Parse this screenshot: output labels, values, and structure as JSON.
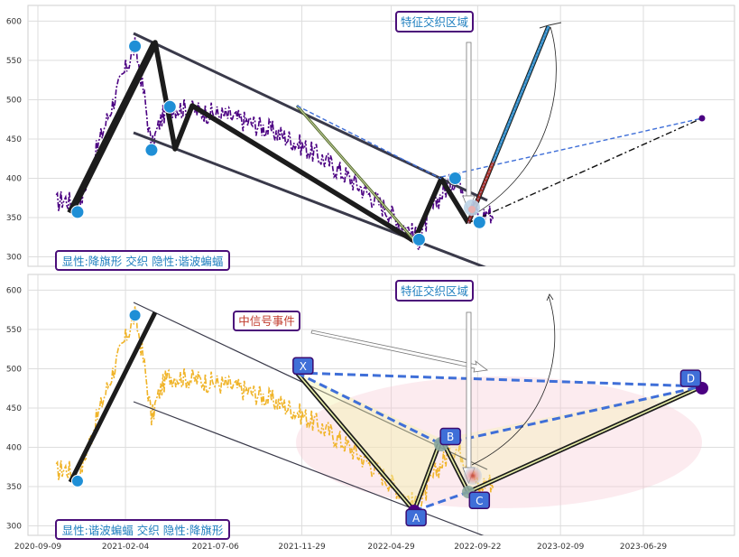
{
  "chart_data": [
    {
      "type": "line",
      "panel": "top",
      "ylim": [
        288,
        620
      ],
      "y_ticks": [
        300,
        350,
        400,
        450,
        500,
        550,
        600
      ],
      "y_tick_labels": [
        "300",
        "350",
        "400",
        "450",
        "500",
        "550",
        "600"
      ],
      "x_ticks": [
        "2020-09-09",
        "2021-02-04",
        "2021-07-06",
        "2021-11-29",
        "2022-04-29",
        "2022-09-22",
        "2023-02-09",
        "2023-06-29"
      ],
      "price_series_color": "#4b0082",
      "pivots": [
        {
          "date": "2020-11-15",
          "value": 357
        },
        {
          "date": "2021-02-20",
          "value": 568
        },
        {
          "date": "2021-03-20",
          "value": 436
        },
        {
          "date": "2021-04-20",
          "value": 491
        },
        {
          "date": "2022-06-15",
          "value": 322
        },
        {
          "date": "2022-08-15",
          "value": 400
        },
        {
          "date": "2022-09-25",
          "value": 344
        }
      ],
      "annotations": [
        {
          "text": "特征交织区域",
          "color": "#1f7fbf"
        },
        {
          "text": "显性:降旗形 交织 隐性:谐波蝙蝠",
          "color": "#1f7fbf"
        }
      ]
    },
    {
      "type": "line",
      "panel": "bottom",
      "ylim": [
        288,
        620
      ],
      "y_ticks": [
        300,
        350,
        400,
        450,
        500,
        550,
        600
      ],
      "y_tick_labels": [
        "300",
        "350",
        "400",
        "450",
        "500",
        "550",
        "600"
      ],
      "x_ticks": [
        "2020-09-09",
        "2021-02-04",
        "2021-07-06",
        "2021-11-29",
        "2022-04-29",
        "2022-09-22",
        "2023-02-09",
        "2023-06-29"
      ],
      "price_series_color": "#f0b429",
      "harmonic_points": [
        {
          "label": "X",
          "date": "2021-12-01",
          "value": 491
        },
        {
          "label": "A",
          "date": "2022-06-10",
          "value": 322
        },
        {
          "label": "B",
          "date": "2022-08-10",
          "value": 400
        },
        {
          "label": "C",
          "date": "2022-09-25",
          "value": 344
        },
        {
          "label": "D",
          "date": "2023-09-20",
          "value": 474
        }
      ],
      "annotations": [
        {
          "text": "特征交织区域",
          "color": "#1f7fbf"
        },
        {
          "text": "中信号事件",
          "color": "#c0392b"
        },
        {
          "text": "显性:谐波蝙蝠 交织 隐性:降旗形",
          "color": "#1f7fbf"
        }
      ]
    }
  ]
}
